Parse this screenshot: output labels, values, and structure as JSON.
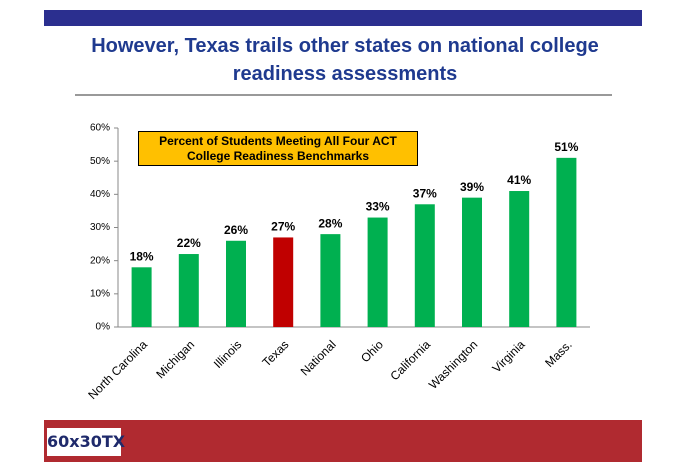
{
  "chart_data": {
    "type": "bar",
    "title": "However, Texas trails other states on national college readiness assessments",
    "annotation": "Percent of Students Meeting All Four ACT College Readiness Benchmarks",
    "categories": [
      "North Carolina",
      "Michigan",
      "Illinois",
      "Texas",
      "National",
      "Ohio",
      "California",
      "Washington",
      "Virginia",
      "Mass."
    ],
    "values": [
      18,
      22,
      26,
      27,
      28,
      33,
      37,
      39,
      41,
      51
    ],
    "value_labels": [
      "18%",
      "22%",
      "26%",
      "27%",
      "28%",
      "33%",
      "37%",
      "39%",
      "41%",
      "51%"
    ],
    "colors": [
      "#00b050",
      "#00b050",
      "#00b050",
      "#c00000",
      "#00b050",
      "#00b050",
      "#00b050",
      "#00b050",
      "#00b050",
      "#00b050"
    ],
    "ylim": [
      0,
      60
    ],
    "yticks": [
      {
        "value": 0,
        "label": "0%"
      },
      {
        "value": 10,
        "label": "10%"
      },
      {
        "value": 20,
        "label": "20%"
      },
      {
        "value": 30,
        "label": "30%"
      },
      {
        "value": 40,
        "label": "40%"
      },
      {
        "value": 50,
        "label": "50%"
      },
      {
        "value": 60,
        "label": "60%"
      }
    ],
    "grid": false
  },
  "logo": "60x30TX"
}
